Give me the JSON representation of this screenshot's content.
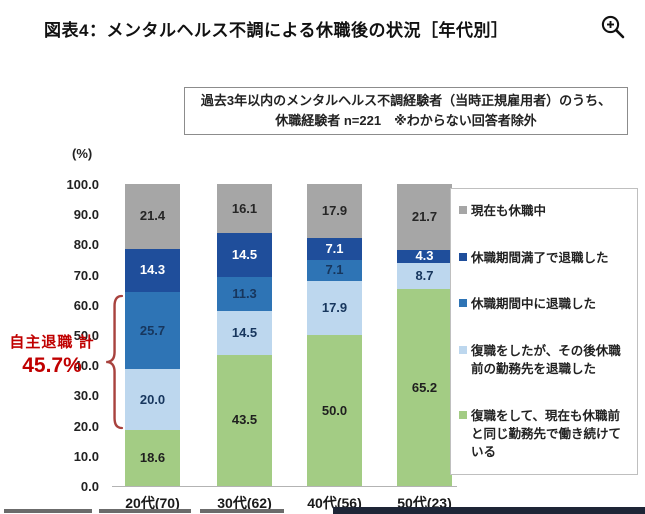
{
  "header": {
    "title": "図表4：メンタルヘルス不調による休職後の状況［年代別］"
  },
  "note_box": {
    "line1": "過去3年以内のメンタルヘルス不調経験者（当時正規雇用者）のうち、",
    "line2": "休職経験者 n=221　※わからない回答者除外"
  },
  "annotation": {
    "label": "自主退職 計",
    "value": "45.7%",
    "text_color": "#c00000",
    "brace_color": "#a8423e",
    "span_from": 18.6,
    "span_to": 64.3
  },
  "chart_data": {
    "type": "bar",
    "stacked": true,
    "orientation": "vertical",
    "unit_label": "(%)",
    "categories": [
      "20代(70)",
      "30代(62)",
      "40代(56)",
      "50代(23)"
    ],
    "series": [
      {
        "name": "復職をして、現在も休職前と同じ勤務先で働き続けている",
        "color": "#a3cc84",
        "label_color": "#1f1f1f",
        "values": [
          18.6,
          43.5,
          50.0,
          65.2
        ]
      },
      {
        "name": "復職をしたが、その後休職前の勤務先を退職した",
        "color": "#bdd7ee",
        "label_color": "#17365d",
        "values": [
          20.0,
          14.5,
          17.9,
          8.7
        ]
      },
      {
        "name": "休職期間中に退職した",
        "color": "#2e74b5",
        "label_color": "#17365d",
        "values": [
          25.7,
          11.3,
          7.1,
          0.0
        ]
      },
      {
        "name": "休職期間満了で退職した",
        "color": "#1f4e9b",
        "label_color": "#ffffff",
        "values": [
          14.3,
          14.5,
          7.1,
          4.3
        ]
      },
      {
        "name": "現在も休職中",
        "color": "#a6a6a6",
        "label_color": "#262626",
        "values": [
          21.4,
          16.1,
          17.9,
          21.7
        ]
      }
    ],
    "ylim": [
      0,
      100
    ],
    "yticks": [
      100.0,
      90.0,
      80.0,
      70.0,
      60.0,
      50.0,
      40.0,
      30.0,
      20.0,
      10.0,
      0.0
    ],
    "grid": false,
    "legend_position": "right"
  }
}
